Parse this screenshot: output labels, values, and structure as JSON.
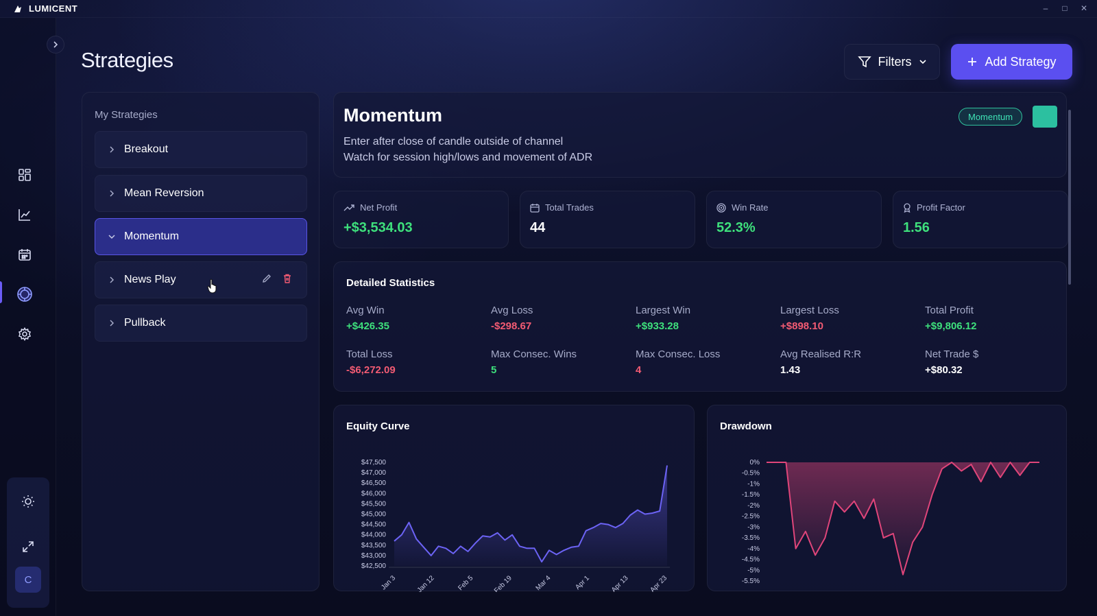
{
  "app": {
    "name": "LUMICENT"
  },
  "page": {
    "title": "Strategies"
  },
  "toolbar": {
    "filters_label": "Filters",
    "add_label": "Add Strategy"
  },
  "sidebar": {
    "heading": "My Strategies",
    "items": [
      {
        "label": "Breakout",
        "expanded": false
      },
      {
        "label": "Mean Reversion",
        "expanded": false
      },
      {
        "label": "Momentum",
        "expanded": true
      },
      {
        "label": "News Play",
        "expanded": false
      },
      {
        "label": "Pullback",
        "expanded": false
      }
    ]
  },
  "strategy": {
    "name": "Momentum",
    "description_line1": "Enter after close of candle outside of channel",
    "description_line2": "Watch for session high/lows and movement of ADR",
    "tag": "Momentum",
    "color": "#2cc0a0"
  },
  "stats": [
    {
      "label": "Net Profit",
      "value": "+$3,534.03",
      "tone": "green",
      "icon": "trend-up-icon"
    },
    {
      "label": "Total Trades",
      "value": "44",
      "tone": "white",
      "icon": "calendar-icon"
    },
    {
      "label": "Win Rate",
      "value": "52.3%",
      "tone": "green",
      "icon": "target-icon"
    },
    {
      "label": "Profit Factor",
      "value": "1.56",
      "tone": "green",
      "icon": "award-icon"
    }
  ],
  "detailed": {
    "title": "Detailed Statistics",
    "items": [
      {
        "label": "Avg Win",
        "value": "+$426.35",
        "tone": "green"
      },
      {
        "label": "Avg Loss",
        "value": "-$298.67",
        "tone": "red"
      },
      {
        "label": "Largest Win",
        "value": "+$933.28",
        "tone": "green"
      },
      {
        "label": "Largest Loss",
        "value": "+$898.10",
        "tone": "red"
      },
      {
        "label": "Total Profit",
        "value": "+$9,806.12",
        "tone": "green"
      },
      {
        "label": "Total Loss",
        "value": "-$6,272.09",
        "tone": "red"
      },
      {
        "label": "Max Consec. Wins",
        "value": "5",
        "tone": "green"
      },
      {
        "label": "Max Consec. Loss",
        "value": "4",
        "tone": "red"
      },
      {
        "label": "Avg Realised R:R",
        "value": "1.43",
        "tone": "white"
      },
      {
        "label": "Net Trade $",
        "value": "+$80.32",
        "tone": "white"
      }
    ]
  },
  "colors": {
    "accent": "#5b4ff0",
    "green": "#3ee07c",
    "red": "#f35b73",
    "equity_line": "#6c63f5",
    "drawdown_line": "#e0457a"
  },
  "chart_data": [
    {
      "type": "area",
      "title": "Equity Curve",
      "ylim": [
        42500,
        47500
      ],
      "y_ticks": [
        "$47,500",
        "$47,000",
        "$46,500",
        "$46,000",
        "$45,500",
        "$45,000",
        "$44,500",
        "$44,000",
        "$43,500",
        "$43,000",
        "$42,500"
      ],
      "x_ticks": [
        "Jan 3",
        "Jan 12",
        "Feb 5",
        "Feb 19",
        "Mar 4",
        "Apr 1",
        "Apr 13",
        "Apr 23"
      ],
      "values": [
        43700,
        44000,
        44600,
        43800,
        43400,
        43000,
        43450,
        43350,
        43100,
        43450,
        43200,
        43600,
        43950,
        43900,
        44100,
        43750,
        44000,
        43450,
        43350,
        43350,
        42700,
        43250,
        43050,
        43250,
        43400,
        43450,
        44200,
        44350,
        44550,
        44500,
        44350,
        44550,
        44950,
        45200,
        45000,
        45050,
        45150,
        47350
      ]
    },
    {
      "type": "area",
      "title": "Drawdown",
      "ylim": [
        -5.5,
        0
      ],
      "y_ticks": [
        "0%",
        "-0.5%",
        "-1%",
        "-1.5%",
        "-2%",
        "-2.5%",
        "-3%",
        "-3.5%",
        "-4%",
        "-4.5%",
        "-5%",
        "-5.5%"
      ],
      "values": [
        0,
        0,
        0,
        -4.0,
        -3.2,
        -4.3,
        -3.5,
        -1.8,
        -2.3,
        -1.8,
        -2.6,
        -1.7,
        -3.5,
        -3.3,
        -5.2,
        -3.7,
        -3.0,
        -1.5,
        -0.3,
        0,
        -0.4,
        -0.1,
        -0.9,
        0,
        -0.7,
        0,
        -0.6,
        0,
        0
      ]
    }
  ]
}
